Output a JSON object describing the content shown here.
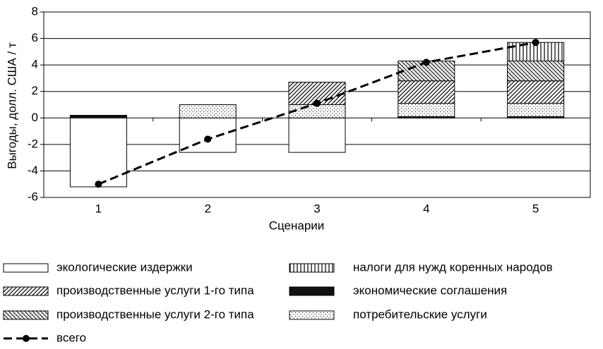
{
  "chart_data": {
    "type": "bar",
    "x_label": "Сценарии",
    "y_label": "Выгоды, долл. США / т",
    "categories": [
      "1",
      "2",
      "3",
      "4",
      "5"
    ],
    "ylim": [
      -6,
      8
    ],
    "yticks": [
      -6,
      -4,
      -2,
      0,
      2,
      4,
      6,
      8
    ],
    "grid": true,
    "series": [
      {
        "name": "экологические издержки",
        "color": "#000000",
        "pattern": "none",
        "values": [
          -5.2,
          -2.6,
          -2.6,
          0,
          0
        ]
      },
      {
        "name": "налоги для нужд коренных народов",
        "color": "#000000",
        "pattern": "vertical",
        "values": [
          0,
          0,
          0,
          0,
          1.4
        ]
      },
      {
        "name": "производственные услуги 1-го типа",
        "color": "#000000",
        "pattern": "diagonal-dense",
        "values": [
          0,
          0,
          1.7,
          1.7,
          1.7
        ]
      },
      {
        "name": "экономические соглашения",
        "color": "#000000",
        "pattern": "solid",
        "values": [
          0.2,
          0,
          0,
          0.1,
          0.1
        ]
      },
      {
        "name": "производственные услуги 2-го типа",
        "color": "#000000",
        "pattern": "crosshatch",
        "values": [
          0,
          0,
          0,
          1.5,
          1.5
        ]
      },
      {
        "name": "потребительские услуги",
        "color": "#000000",
        "pattern": "dots",
        "values": [
          0,
          1.0,
          1.0,
          1.0,
          1.0
        ]
      }
    ],
    "line": {
      "name": "всего",
      "color": "#000000",
      "values": [
        -5.0,
        -1.6,
        1.1,
        4.2,
        5.7
      ]
    }
  }
}
